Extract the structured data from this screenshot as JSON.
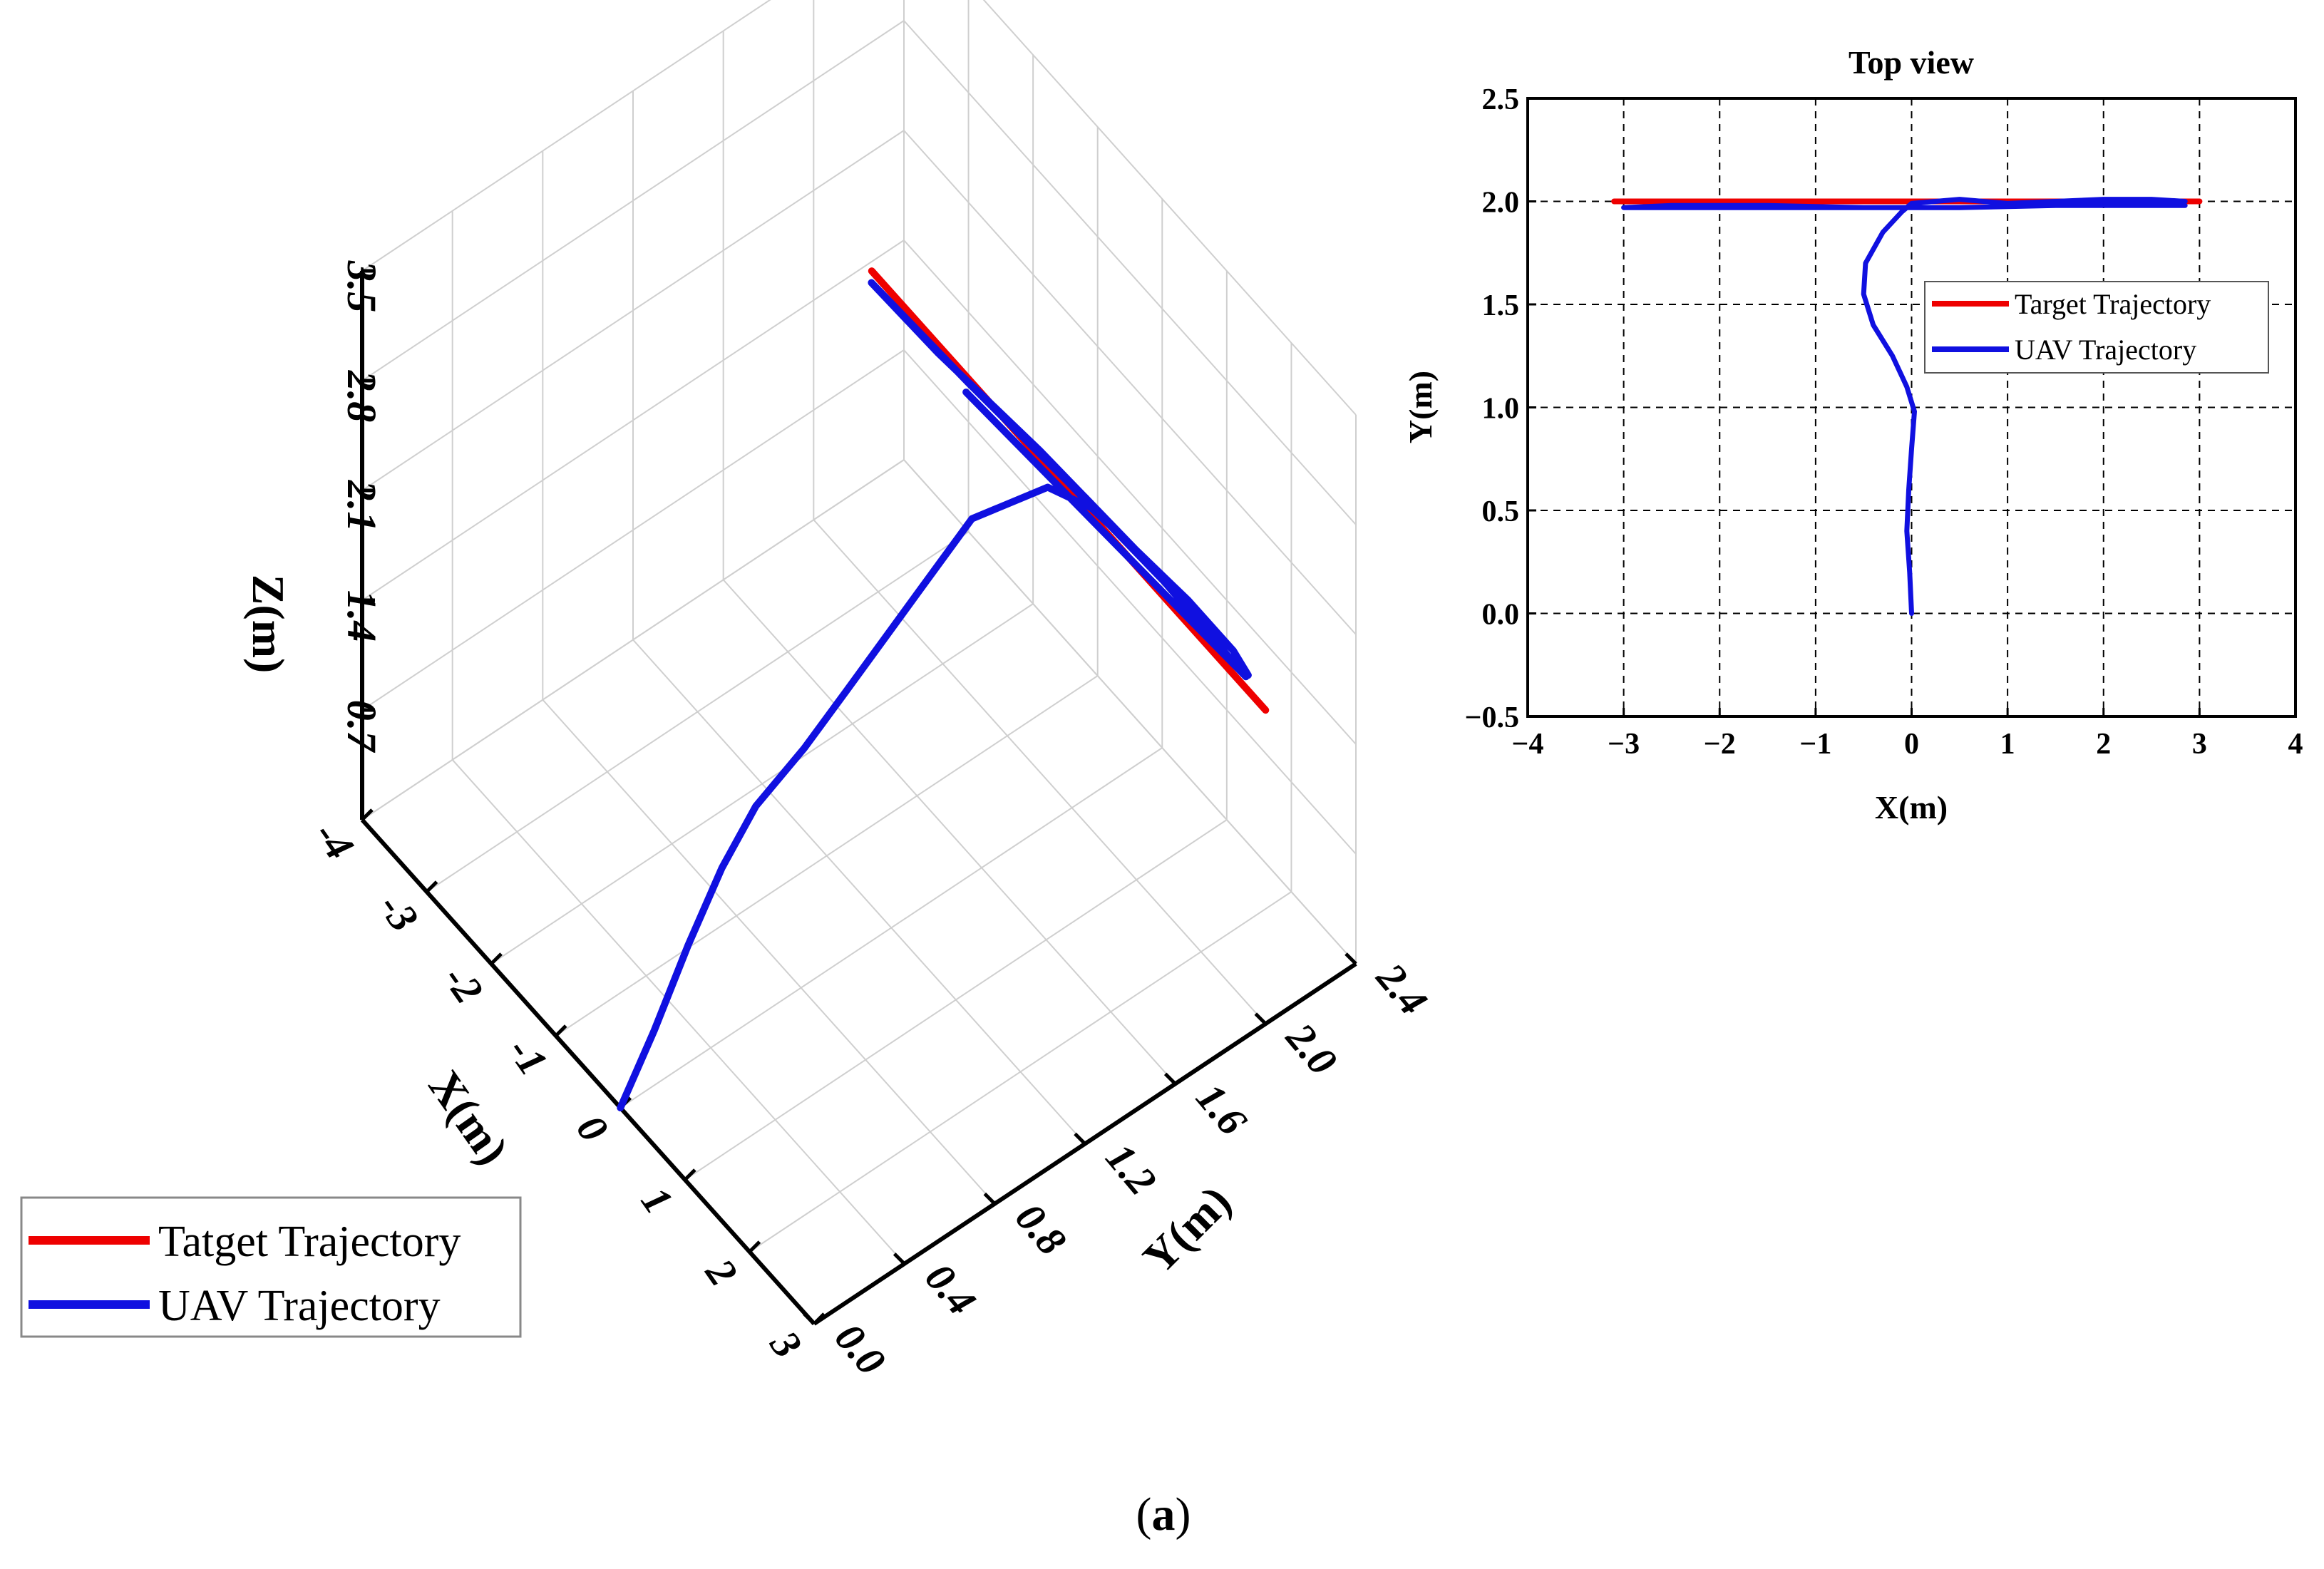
{
  "figure_caption": {
    "open": "(",
    "letter": "a",
    "close": ")"
  },
  "chart_data": [
    {
      "type": "line",
      "projection": "3d",
      "title": "",
      "xlabel": "X(m)",
      "ylabel": "Y(m)",
      "zlabel": "Z(m)",
      "xlim": [
        -4,
        3
      ],
      "ylim": [
        0.0,
        2.4
      ],
      "zlim": [
        0.0,
        3.5
      ],
      "x_ticks": [
        "-4",
        "-3",
        "-2",
        "-1",
        "0",
        "1",
        "2",
        "3"
      ],
      "y_ticks": [
        "0.0",
        "0.4",
        "0.8",
        "1.2",
        "1.6",
        "2.0",
        "2.4"
      ],
      "z_ticks": [
        "0.7",
        "1.4",
        "2.1",
        "2.8",
        "3.5"
      ],
      "grid": true,
      "legend_position": "bottom-left",
      "series": [
        {
          "name": "Tatget Trajectory",
          "color": "#ee0000",
          "points": [
            [
              -3.1,
              2.0,
              2.0
            ],
            [
              3.0,
              2.0,
              2.0
            ]
          ]
        },
        {
          "name": "UAV Trajectory",
          "color": "#1010e0",
          "points": [
            [
              0.0,
              0.0,
              0.0
            ],
            [
              0.0,
              0.15,
              0.35
            ],
            [
              0.0,
              0.3,
              0.75
            ],
            [
              0.0,
              0.45,
              1.1
            ],
            [
              0.0,
              0.6,
              1.35
            ],
            [
              0.05,
              0.8,
              1.55
            ],
            [
              0.0,
              1.0,
              1.7
            ],
            [
              -0.3,
              1.4,
              1.8
            ],
            [
              -0.5,
              1.7,
              1.9
            ],
            [
              -0.2,
              1.95,
              2.0
            ],
            [
              0.3,
              2.0,
              2.05
            ],
            [
              1.0,
              2.0,
              2.1
            ],
            [
              1.8,
              2.0,
              2.15
            ],
            [
              2.5,
              2.0,
              2.15
            ],
            [
              2.8,
              1.98,
              2.15
            ],
            [
              2.5,
              2.0,
              2.15
            ],
            [
              1.0,
              2.0,
              2.1
            ],
            [
              -0.5,
              2.0,
              2.05
            ],
            [
              -2.0,
              1.98,
              2.0
            ],
            [
              -3.0,
              1.97,
              2.0
            ],
            [
              -3.0,
              1.97,
              2.0
            ],
            [
              -1.5,
              1.97,
              2.05
            ],
            [
              0.0,
              1.98,
              2.1
            ],
            [
              1.5,
              1.98,
              2.15
            ],
            [
              2.8,
              1.97,
              2.15
            ],
            [
              -1.5,
              1.96,
              2.0
            ]
          ]
        }
      ]
    },
    {
      "type": "line",
      "title": "Top view",
      "xlabel": "X(m)",
      "ylabel": "Y(m)",
      "xlim": [
        -4,
        4
      ],
      "ylim": [
        -0.5,
        2.5
      ],
      "x_ticks": [
        "−4",
        "−3",
        "−2",
        "−1",
        "0",
        "1",
        "2",
        "3",
        "4"
      ],
      "y_ticks": [
        "−0.5",
        "0.0",
        "0.5",
        "1.0",
        "1.5",
        "2.0",
        "2.5"
      ],
      "grid": true,
      "legend_position": "right",
      "series": [
        {
          "name": "Target Trajectory",
          "color": "#ee0000",
          "x": [
            -3.1,
            3.0
          ],
          "y": [
            2.0,
            2.0
          ]
        },
        {
          "name": "UAV Trajectory",
          "color": "#1010e0",
          "x": [
            0.0,
            -0.02,
            -0.05,
            -0.03,
            0.0,
            0.03,
            -0.05,
            -0.2,
            -0.4,
            -0.5,
            -0.48,
            -0.3,
            -0.1,
            0.0,
            0.5,
            1.0,
            1.5,
            2.0,
            2.5,
            2.85,
            2.4,
            1.5,
            0.5,
            -0.5,
            -1.5,
            -2.5,
            -3.0,
            -2.5,
            -1.5,
            -0.5,
            0.5,
            1.5,
            2.5,
            2.85
          ],
          "y": [
            0.0,
            0.2,
            0.4,
            0.6,
            0.8,
            0.98,
            1.1,
            1.25,
            1.4,
            1.55,
            1.7,
            1.85,
            1.95,
            1.99,
            2.01,
            1.99,
            2.0,
            2.01,
            2.01,
            2.0,
            1.99,
            1.98,
            1.97,
            1.97,
            1.97,
            1.97,
            1.97,
            1.98,
            1.98,
            1.97,
            1.97,
            1.98,
            1.98,
            1.98
          ]
        }
      ]
    }
  ]
}
